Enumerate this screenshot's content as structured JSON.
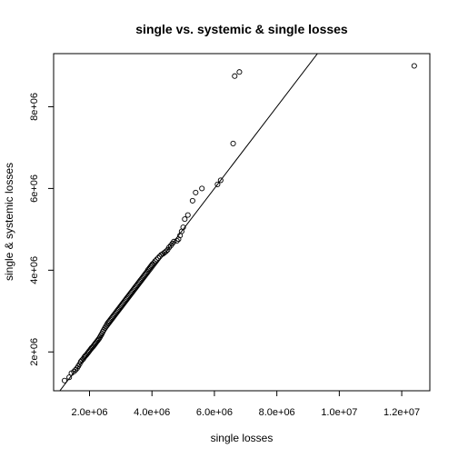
{
  "chart_data": {
    "type": "scatter",
    "title": "single vs. systemic & single losses",
    "xlabel": "single losses",
    "ylabel": "single & systemic losses",
    "xlim": [
      850000,
      12900000
    ],
    "ylim": [
      1050000,
      9300000
    ],
    "x_ticks": [
      2000000,
      4000000,
      6000000,
      8000000,
      10000000,
      12000000
    ],
    "x_tick_labels": [
      "2.0e+06",
      "4.0e+06",
      "6.0e+06",
      "8.0e+06",
      "1.0e+07",
      "1.2e+07"
    ],
    "y_ticks": [
      2000000,
      4000000,
      6000000,
      8000000
    ],
    "y_tick_labels": [
      "2e+06",
      "4e+06",
      "6e+06",
      "8e+06"
    ],
    "grid": false,
    "reference_line": {
      "slope": 1,
      "intercept": 0
    },
    "points": {
      "x": [
        1200000,
        1350000,
        1420000,
        1500000,
        1550000,
        1600000,
        1640000,
        1680000,
        1720000,
        1760000,
        1800000,
        1830000,
        1860000,
        1890000,
        1920000,
        1950000,
        1980000,
        2010000,
        2040000,
        2070000,
        2100000,
        2130000,
        2160000,
        2190000,
        2220000,
        2250000,
        2280000,
        2310000,
        2340000,
        2370000,
        2400000,
        2430000,
        2460000,
        2490000,
        2520000,
        2550000,
        2580000,
        2610000,
        2640000,
        2670000,
        2700000,
        2730000,
        2760000,
        2790000,
        2820000,
        2850000,
        2880000,
        2910000,
        2940000,
        2970000,
        3000000,
        3030000,
        3060000,
        3090000,
        3120000,
        3150000,
        3180000,
        3210000,
        3240000,
        3270000,
        3300000,
        3330000,
        3360000,
        3390000,
        3420000,
        3450000,
        3480000,
        3510000,
        3540000,
        3570000,
        3600000,
        3630000,
        3660000,
        3690000,
        3720000,
        3750000,
        3780000,
        3810000,
        3840000,
        3870000,
        3900000,
        3930000,
        3960000,
        3990000,
        4020000,
        4060000,
        4100000,
        4150000,
        4200000,
        4250000,
        4300000,
        4350000,
        4400000,
        4450000,
        4500000,
        4550000,
        4600000,
        4650000,
        4700000,
        4800000,
        4850000,
        4900000,
        4950000,
        5000000,
        5050000,
        5150000,
        5300000,
        5400000,
        5600000,
        6100000,
        6200000,
        6600000,
        6650000,
        6800000,
        12400000
      ],
      "y": [
        1300000,
        1380000,
        1480000,
        1520000,
        1560000,
        1600000,
        1650000,
        1700000,
        1760000,
        1800000,
        1830000,
        1870000,
        1900000,
        1920000,
        1950000,
        1980000,
        2010000,
        2040000,
        2070000,
        2100000,
        2120000,
        2150000,
        2180000,
        2210000,
        2240000,
        2270000,
        2300000,
        2330000,
        2370000,
        2410000,
        2450000,
        2500000,
        2540000,
        2580000,
        2620000,
        2660000,
        2700000,
        2730000,
        2760000,
        2790000,
        2820000,
        2850000,
        2880000,
        2910000,
        2940000,
        2970000,
        3000000,
        3030000,
        3060000,
        3090000,
        3120000,
        3150000,
        3180000,
        3210000,
        3240000,
        3270000,
        3300000,
        3330000,
        3360000,
        3390000,
        3420000,
        3450000,
        3480000,
        3510000,
        3540000,
        3570000,
        3600000,
        3630000,
        3660000,
        3690000,
        3720000,
        3750000,
        3780000,
        3810000,
        3840000,
        3870000,
        3900000,
        3930000,
        3960000,
        4000000,
        4030000,
        4060000,
        4090000,
        4120000,
        4150000,
        4180000,
        4220000,
        4260000,
        4300000,
        4340000,
        4380000,
        4400000,
        4430000,
        4460000,
        4500000,
        4560000,
        4600000,
        4650000,
        4700000,
        4720000,
        4760000,
        4850000,
        4950000,
        5050000,
        5250000,
        5350000,
        5700000,
        5900000,
        6000000,
        6100000,
        6200000,
        7100000,
        8750000,
        8850000,
        9000000
      ]
    }
  }
}
